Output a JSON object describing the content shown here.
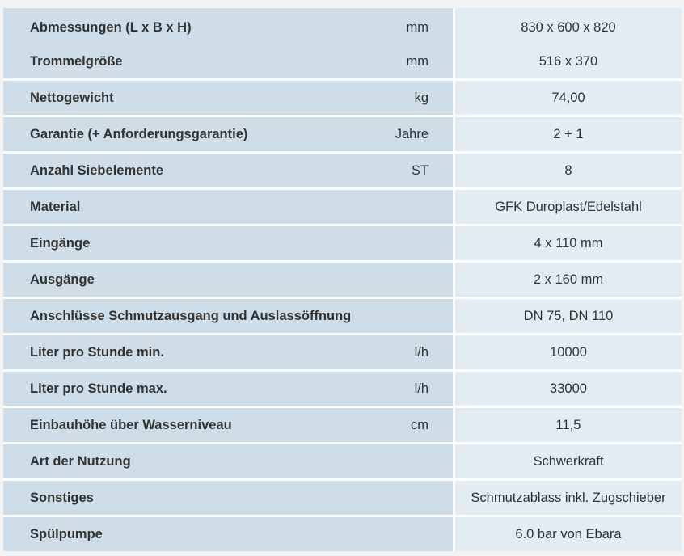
{
  "rows": [
    {
      "label": "Abmessungen (L x B x H)",
      "unit": "mm",
      "value": "830 x 600 x 820"
    },
    {
      "label": "Trommelgröße",
      "unit": "mm",
      "value": "516 x 370"
    },
    {
      "label": "Nettogewicht",
      "unit": "kg",
      "value": "74,00"
    },
    {
      "label": "Garantie (+ Anforderungsgarantie)",
      "unit": "Jahre",
      "value": "2 + 1"
    },
    {
      "label": "Anzahl Siebelemente",
      "unit": "ST",
      "value": "8"
    },
    {
      "label": "Material",
      "unit": "",
      "value": "GFK Duroplast/Edelstahl"
    },
    {
      "label": "Eingänge",
      "unit": "",
      "value": "4 x 110 mm"
    },
    {
      "label": "Ausgänge",
      "unit": "",
      "value": "2 x 160 mm"
    },
    {
      "label": "Anschlüsse Schmutzausgang und Auslassöffnung",
      "unit": "",
      "value": "DN 75, DN 110"
    },
    {
      "label": "Liter pro Stunde min.",
      "unit": "l/h",
      "value": "10000"
    },
    {
      "label": "Liter pro Stunde max.",
      "unit": "l/h",
      "value": "33000"
    },
    {
      "label": "Einbauhöhe über Wasserniveau",
      "unit": "cm",
      "value": "11,5"
    },
    {
      "label": "Art der Nutzung",
      "unit": "",
      "value": "Schwerkraft"
    },
    {
      "label": "Sonstiges",
      "unit": "",
      "value": "Schmutzablass inkl. Zugschieber"
    },
    {
      "label": "Spülpumpe",
      "unit": "",
      "value": "6.0 bar von Ebara"
    }
  ]
}
